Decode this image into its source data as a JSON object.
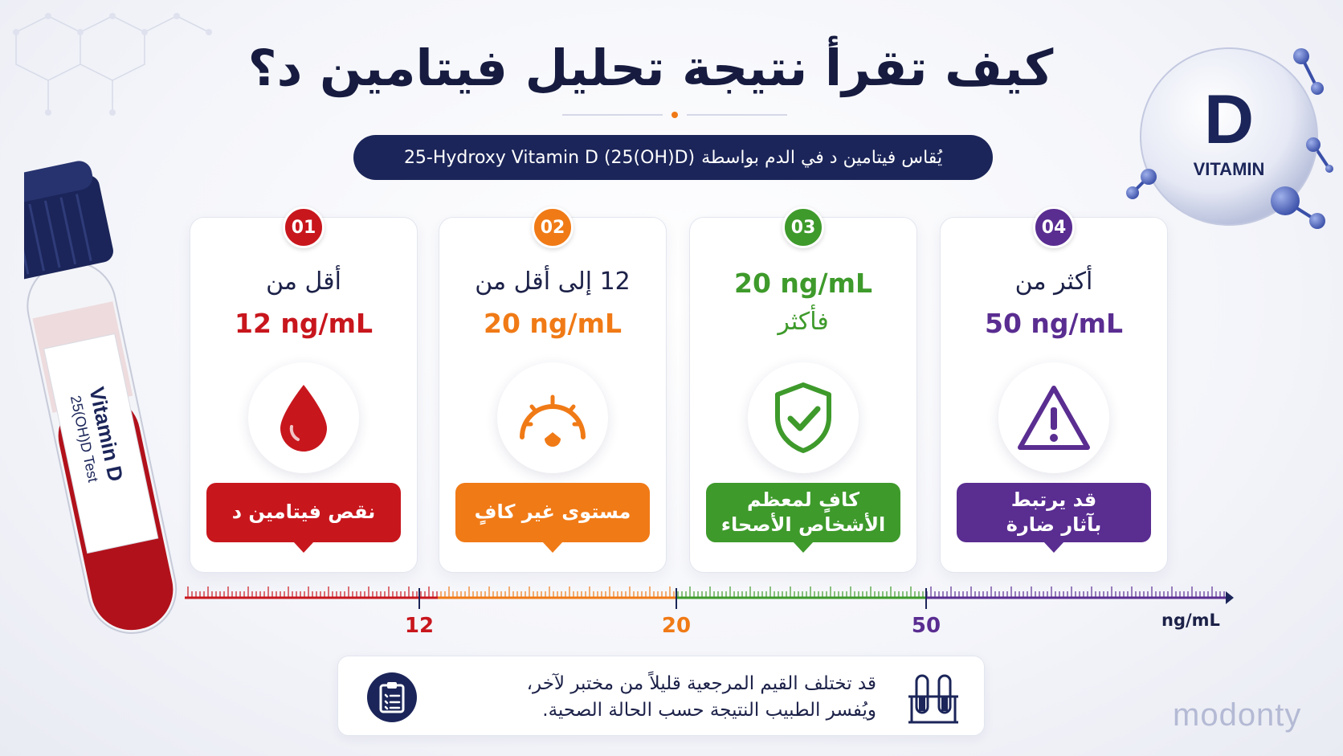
{
  "title": "كيف تقرأ نتيجة تحليل فيتامين د؟",
  "subtitle": {
    "ar": "يُقاس فيتامين د في الدم بواسطة",
    "en": "25-Hydroxy Vitamin D (25(OH)D)"
  },
  "badge": {
    "letter": "D",
    "word": "VITAMIN"
  },
  "tube": {
    "line1": "Vitamin D",
    "line2": "25(OH)D Test"
  },
  "cards": [
    {
      "num": "01",
      "line1": "أقل من",
      "line2": "12 ng/mL",
      "label": "نقص فيتامين د",
      "color": "#c8161d",
      "icon": "blood-drop-icon"
    },
    {
      "num": "02",
      "line1": "12 إلى أقل من",
      "line2": "20 ng/mL",
      "label": "مستوى غير كافٍ",
      "color": "#f07a16",
      "icon": "gauge-icon"
    },
    {
      "num": "03",
      "line1": "20 ng/mL",
      "line2": "فأكثر",
      "label_l1": "كافٍ لمعظم",
      "label_l2": "الأشخاص الأصحاء",
      "color": "#3e9a2b",
      "icon": "shield-check-icon"
    },
    {
      "num": "04",
      "line1": "أكثر من",
      "line2": "50 ng/mL",
      "label_l1": "قد يرتبط",
      "label_l2": "بآثار ضارة",
      "color": "#5a2d91",
      "icon": "warning-icon"
    }
  ],
  "scale": {
    "ticks": [
      "12",
      "20",
      "50"
    ],
    "unit": "ng/mL",
    "colors": [
      "#c8161d",
      "#f07a16",
      "#3e9a2b",
      "#5a2d91",
      "#1b2559"
    ]
  },
  "note": {
    "line1": "قد تختلف القيم المرجعية قليلاً من مختبر لآخر،",
    "line2": "ويُفسر الطبيب النتيجة حسب الحالة الصحية.",
    "icon": "clipboard-icon",
    "side_icon": "test-tubes-icon"
  },
  "brand": "modonty"
}
